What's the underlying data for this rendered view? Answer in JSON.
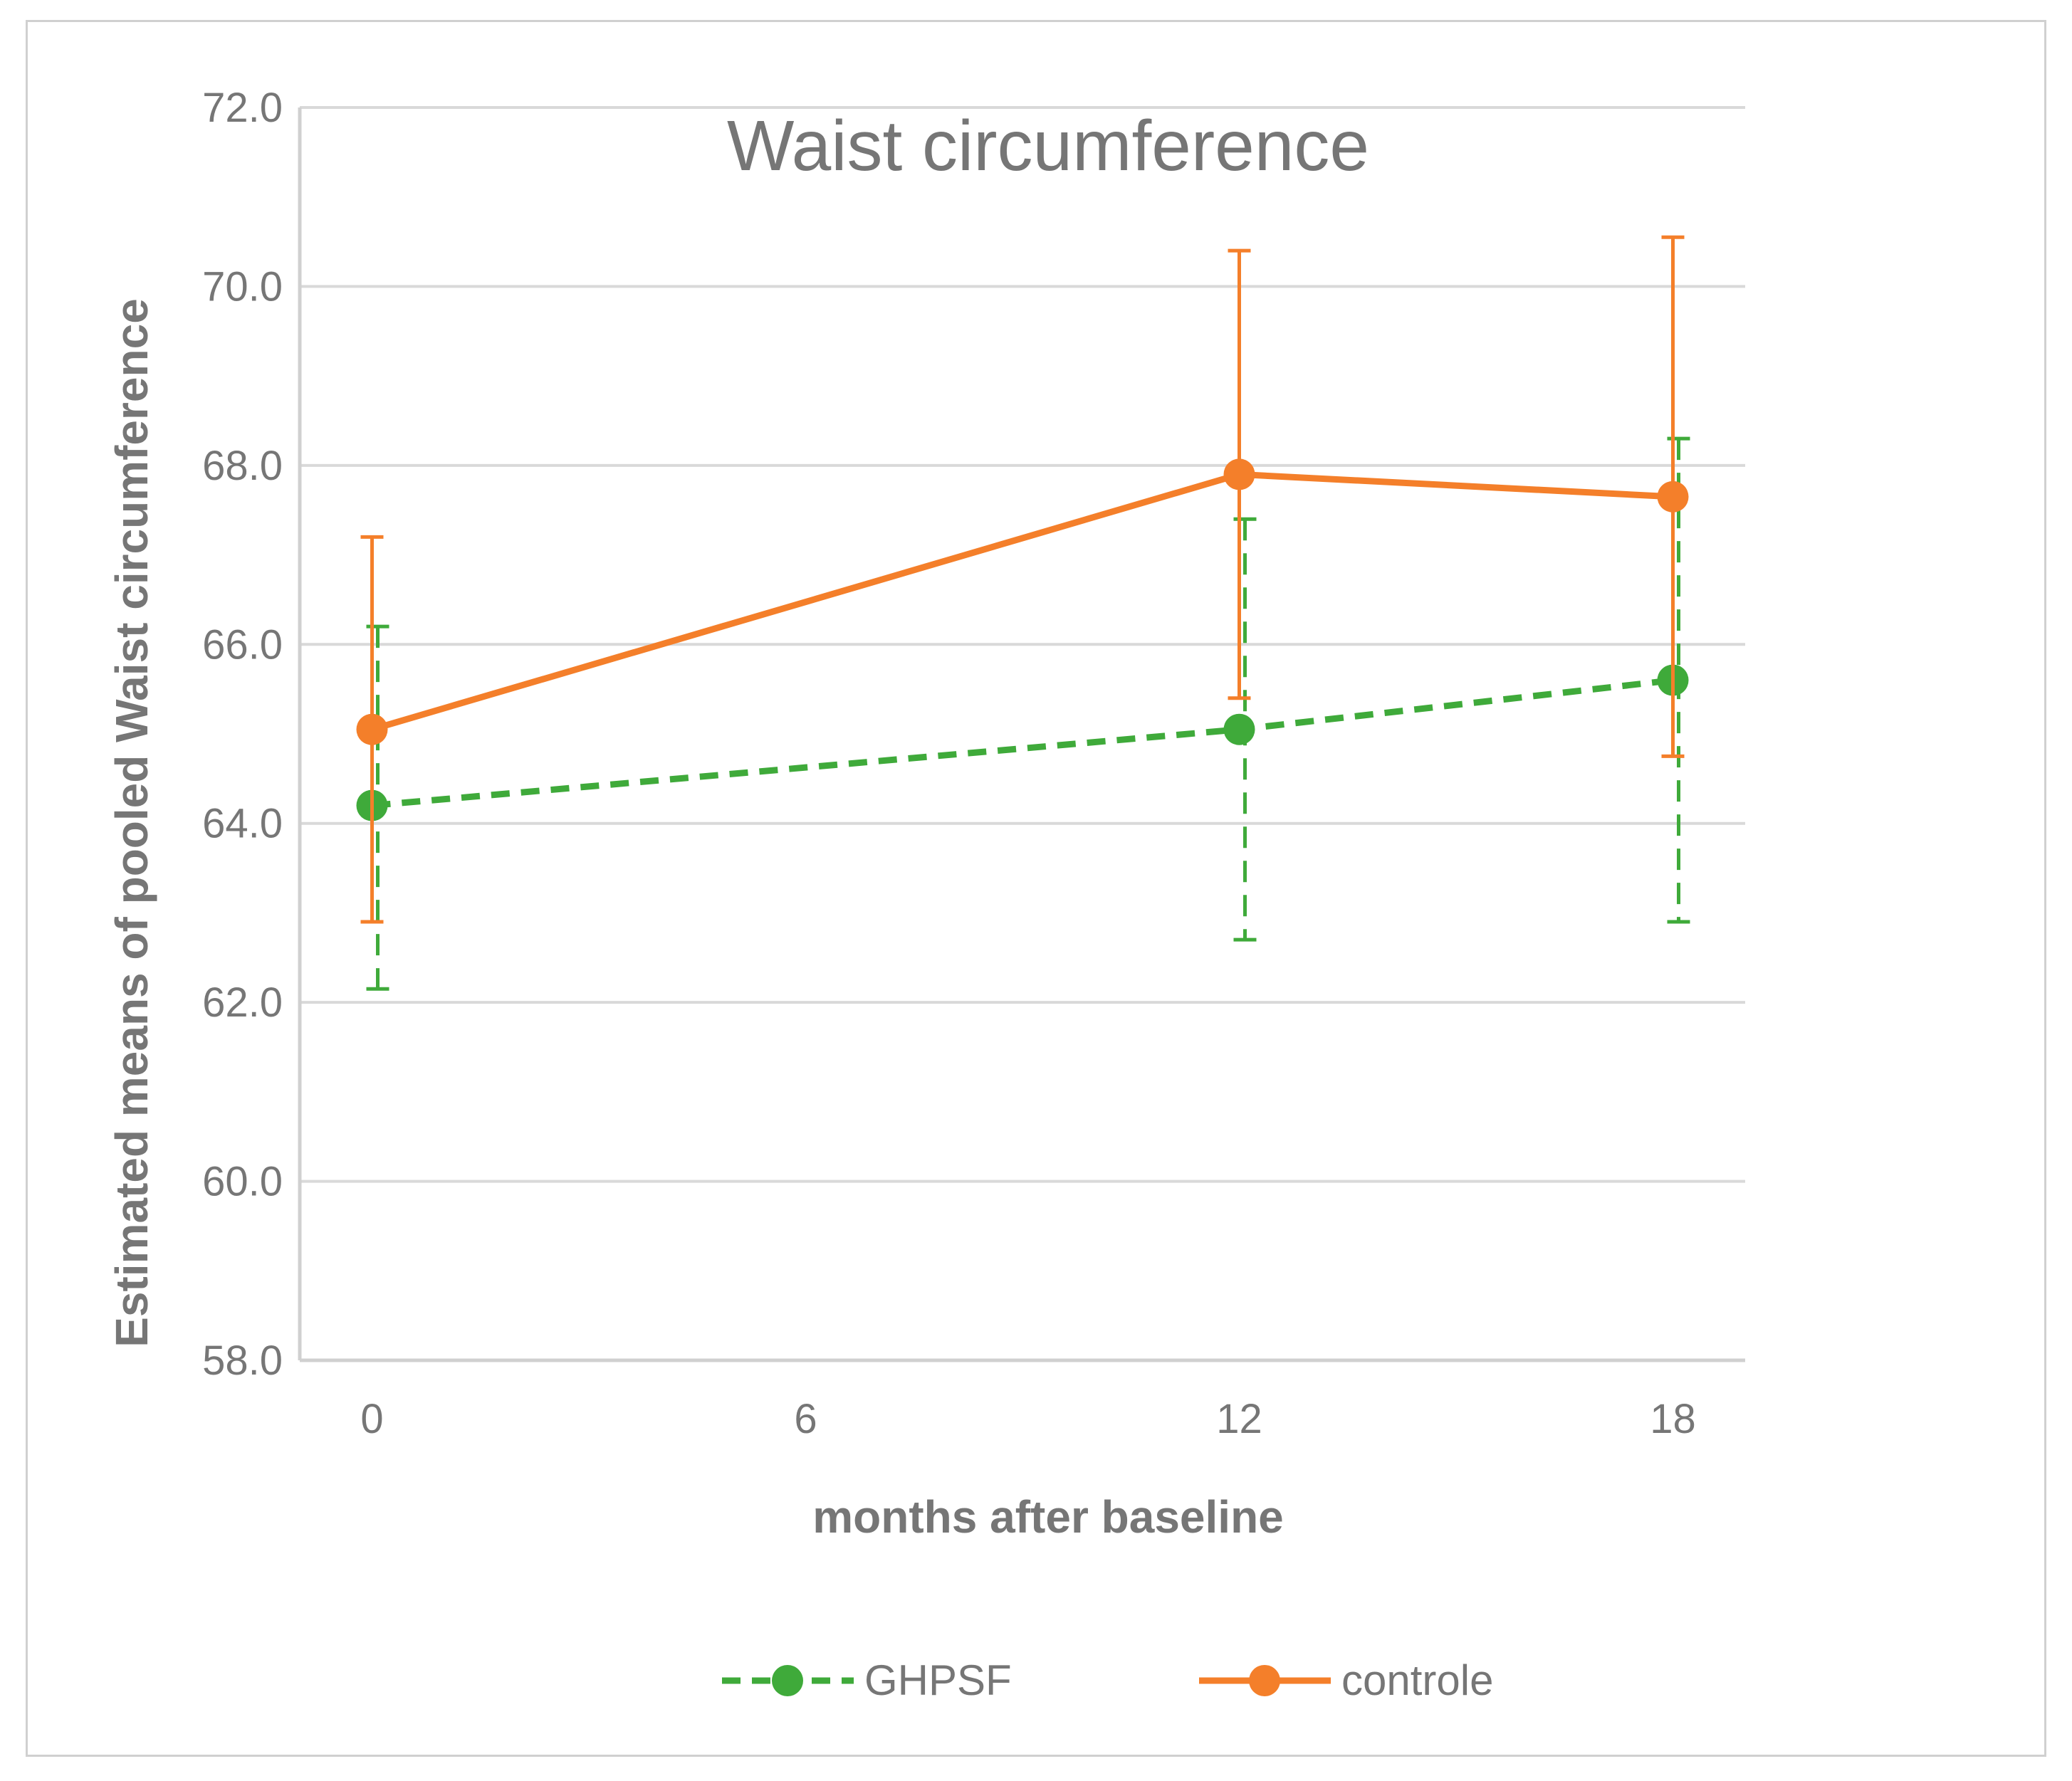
{
  "chart_data": {
    "type": "line",
    "title": "Waist circumference",
    "xlabel": "months after baseline",
    "ylabel": "Estimated means of pooled Waist circumference",
    "x": [
      0,
      12,
      18
    ],
    "x_ticks": [
      "0",
      "6",
      "12",
      "18"
    ],
    "xlim": [
      -1,
      19
    ],
    "ylim": [
      58,
      72
    ],
    "y_ticks": [
      "58.0",
      "60.0",
      "62.0",
      "64.0",
      "66.0",
      "68.0",
      "70.0",
      "72.0"
    ],
    "grid": true,
    "legend_position": "bottom",
    "series": [
      {
        "name": "GHPSF",
        "color": "#3faa3a",
        "line_style": "dashed",
        "values": [
          64.2,
          65.05,
          65.6
        ],
        "error_low": [
          62.15,
          62.7,
          62.9
        ],
        "error_high": [
          66.2,
          67.4,
          68.3
        ]
      },
      {
        "name": "controle",
        "color": "#f47f2a",
        "line_style": "solid",
        "values": [
          65.05,
          67.9,
          67.65
        ],
        "error_low": [
          62.9,
          65.4,
          64.75
        ],
        "error_high": [
          67.2,
          70.4,
          70.55
        ]
      }
    ]
  }
}
